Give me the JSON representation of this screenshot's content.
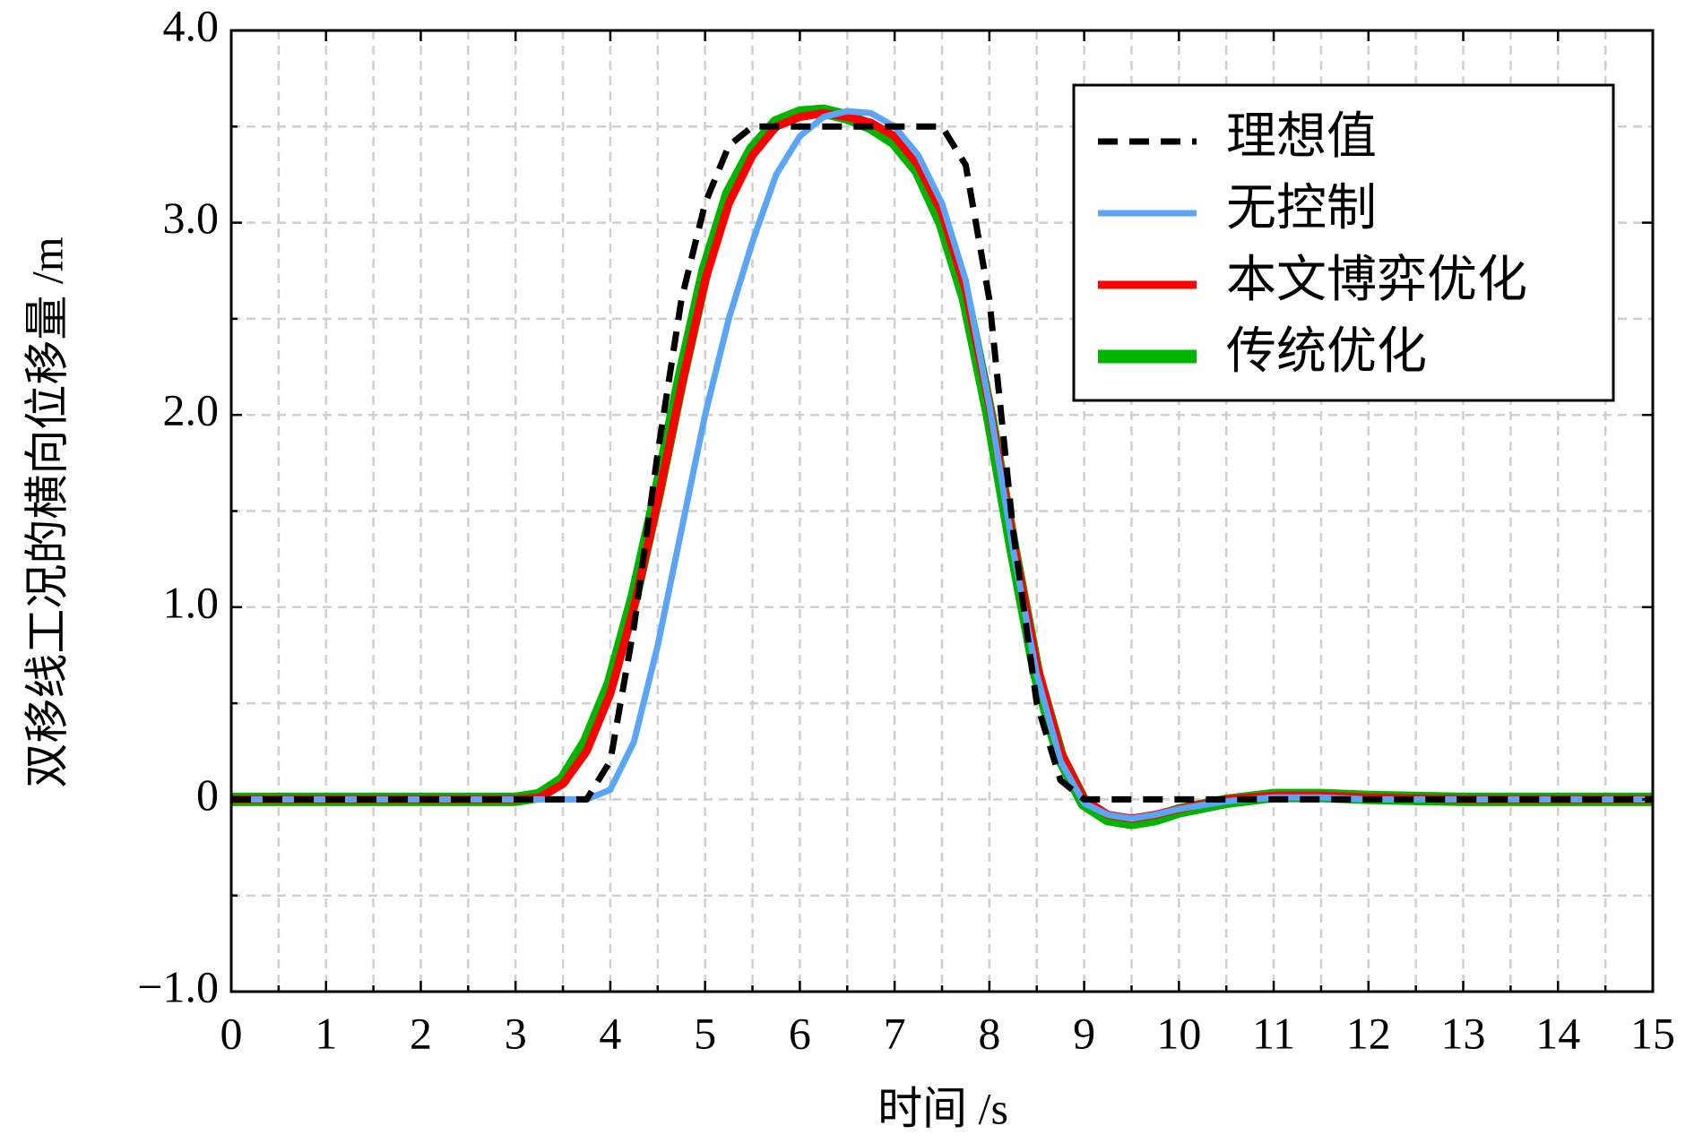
{
  "chart_data": {
    "type": "line",
    "xlabel": "时间 /s",
    "ylabel": "双移线工况的横向位移量 /m",
    "x": [
      0,
      1,
      2,
      3,
      3.25,
      3.5,
      3.75,
      4,
      4.25,
      4.5,
      4.75,
      5,
      5.25,
      5.5,
      5.75,
      6,
      6.25,
      6.5,
      6.75,
      7,
      7.25,
      7.5,
      7.75,
      8,
      8.25,
      8.5,
      8.75,
      9,
      9.25,
      9.5,
      9.75,
      10,
      10.5,
      11,
      11.5,
      12,
      13,
      14,
      15
    ],
    "series": [
      {
        "name": "理想值",
        "color": "#000000",
        "dashed": true,
        "values": [
          0,
          0,
          0,
          0,
          0,
          0,
          0,
          0.2,
          0.9,
          1.8,
          2.6,
          3.1,
          3.4,
          3.5,
          3.5,
          3.5,
          3.5,
          3.5,
          3.5,
          3.5,
          3.5,
          3.5,
          3.3,
          2.6,
          1.4,
          0.5,
          0.1,
          0,
          0,
          0,
          0,
          0,
          0,
          0,
          0,
          0,
          0,
          0,
          0
        ]
      },
      {
        "name": "无控制",
        "color": "#5aa5f5",
        "values": [
          0,
          0,
          0,
          0,
          0,
          0,
          0,
          0.05,
          0.3,
          0.8,
          1.4,
          2.0,
          2.5,
          2.9,
          3.25,
          3.45,
          3.55,
          3.58,
          3.57,
          3.5,
          3.35,
          3.1,
          2.7,
          2.05,
          1.3,
          0.65,
          0.2,
          -0.02,
          -0.08,
          -0.1,
          -0.08,
          -0.05,
          -0.01,
          0.01,
          0.01,
          0,
          0,
          0,
          0
        ]
      },
      {
        "name": "本文博弈优化",
        "color": "#ff0000",
        "values": [
          0,
          0,
          0,
          0,
          0.01,
          0.08,
          0.25,
          0.55,
          1.0,
          1.55,
          2.15,
          2.7,
          3.1,
          3.35,
          3.5,
          3.55,
          3.57,
          3.55,
          3.52,
          3.45,
          3.3,
          3.05,
          2.65,
          2.05,
          1.35,
          0.7,
          0.25,
          0.0,
          -0.08,
          -0.1,
          -0.08,
          -0.05,
          0,
          0.02,
          0.02,
          0.01,
          0,
          0,
          0
        ]
      },
      {
        "name": "传统优化",
        "color": "#00b400",
        "values": [
          0,
          0,
          0,
          0,
          0.02,
          0.1,
          0.3,
          0.6,
          1.05,
          1.6,
          2.2,
          2.75,
          3.15,
          3.38,
          3.52,
          3.57,
          3.58,
          3.55,
          3.5,
          3.42,
          3.27,
          3.0,
          2.6,
          2.0,
          1.3,
          0.65,
          0.22,
          -0.02,
          -0.1,
          -0.12,
          -0.1,
          -0.06,
          -0.01,
          0.02,
          0.02,
          0.01,
          0,
          0,
          0
        ]
      }
    ],
    "xlim": [
      0,
      15
    ],
    "xticks": [
      0,
      1,
      2,
      3,
      4,
      5,
      6,
      7,
      8,
      9,
      10,
      11,
      12,
      13,
      14,
      15
    ],
    "xminorticks": [
      0.5,
      1.5,
      2.5,
      3.5,
      4.5,
      5.5,
      6.5,
      7.5,
      8.5,
      9.5,
      10.5,
      11.5,
      12.5,
      13.5,
      14.5
    ],
    "ylim": [
      -1,
      4
    ],
    "yticks": [
      {
        "value": -1,
        "label": "−1.0"
      },
      0,
      {
        "value": 1,
        "label": "1.0"
      },
      {
        "value": 2,
        "label": "2.0"
      },
      {
        "value": 3,
        "label": "3.0"
      },
      {
        "value": 4,
        "label": "4.0"
      }
    ],
    "yminorticks": [
      -0.5,
      0.5,
      1.5,
      2.5,
      3.5
    ],
    "grid": true,
    "legend": "upper right"
  }
}
